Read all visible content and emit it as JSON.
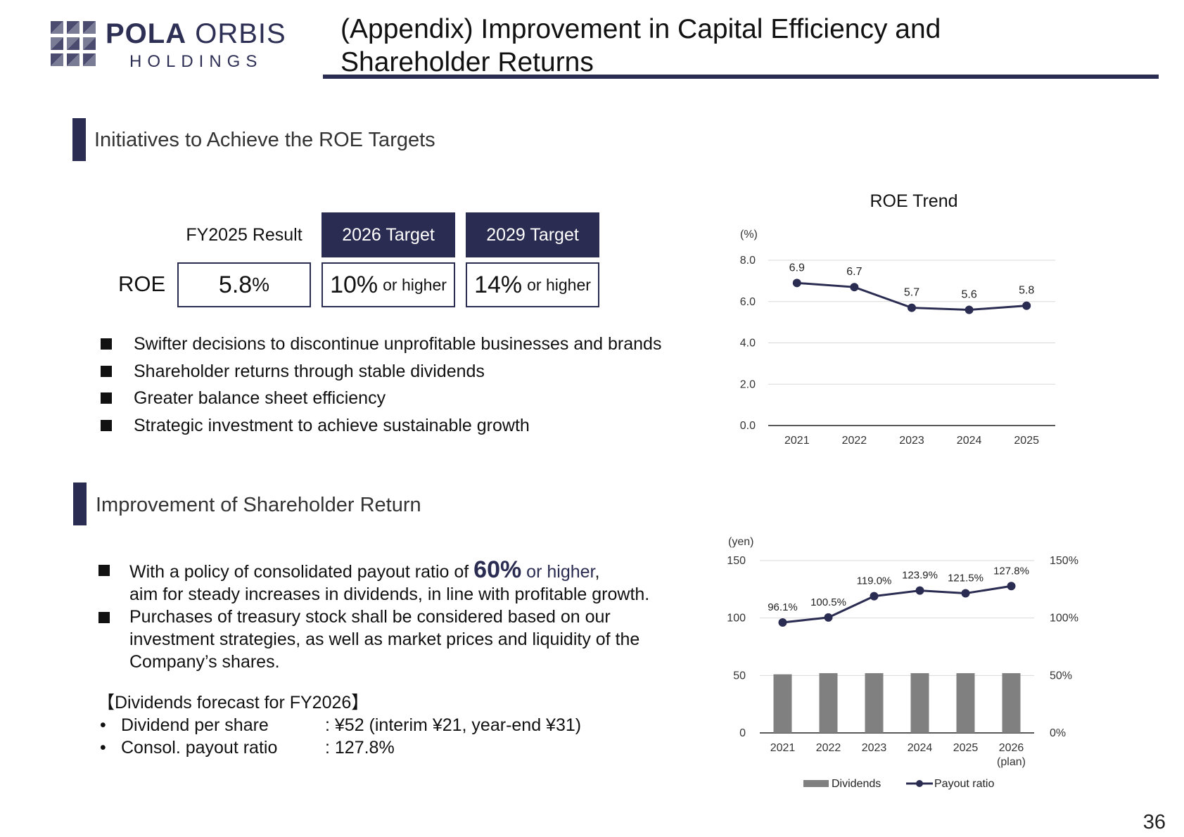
{
  "logo": {
    "brand_bold": "POLA",
    "brand_light": "ORBIS",
    "sub": "HOLDINGS"
  },
  "header": {
    "title_line1": "(Appendix) Improvement in Capital Efficiency and",
    "title_line2": "Shareholder Returns"
  },
  "section1": {
    "title": "Initiatives to Achieve the ROE Targets",
    "table": {
      "row_label": "ROE",
      "columns": [
        {
          "header": "FY2025 Result",
          "value": "5.8",
          "unit": "%",
          "suffix": ""
        },
        {
          "header": "2026 Target",
          "value": "10%",
          "unit": "",
          "suffix": "or higher"
        },
        {
          "header": "2029 Target",
          "value": "14%",
          "unit": "",
          "suffix": "or higher"
        }
      ]
    },
    "bullets": [
      "Swifter decisions to discontinue unprofitable businesses and brands",
      "Shareholder returns through stable dividends",
      "Greater balance sheet efficiency",
      "Strategic investment to achieve sustainable growth"
    ]
  },
  "section2": {
    "title": "Improvement of Shareholder Return",
    "bullet1_pre": "With a policy of consolidated payout ratio of ",
    "bullet1_highlight": "60%",
    "bullet1_hl_suffix": " or higher",
    "bullet1_post": ",",
    "bullet1_line2": "aim for steady increases in dividends, in line with profitable growth.",
    "bullet2_lines": [
      "Purchases of treasury stock shall be considered based on our",
      "investment strategies, as well as market prices and liquidity of the",
      "Company’s shares."
    ],
    "forecast": {
      "heading": "【Dividends forecast for FY2026】",
      "bullet_char": "•",
      "rows": [
        {
          "label": "Dividend per share",
          "value": ": ¥52 (interim ¥21, year-end ¥31)"
        },
        {
          "label": "Consol. payout ratio",
          "value": ": 127.8%"
        }
      ]
    }
  },
  "page_number": "36",
  "colors": {
    "navy": "#2b2c52",
    "bar_gray": "#808080",
    "grid": "#d9d9d9"
  },
  "chart_data": [
    {
      "type": "line",
      "title": "ROE Trend",
      "ylabel": "(%)",
      "categories": [
        "2021",
        "2022",
        "2023",
        "2024",
        "2025"
      ],
      "series": [
        {
          "values": [
            6.9,
            6.7,
            5.7,
            5.6,
            5.8
          ]
        }
      ],
      "ylim": [
        0,
        8
      ],
      "yticks": [
        "0.0",
        "2.0",
        "4.0",
        "6.0",
        "8.0"
      ],
      "data_labels": [
        "6.9",
        "6.7",
        "5.7",
        "5.6",
        "5.8"
      ],
      "grid": true
    },
    {
      "type": "bar",
      "ylabel_left": "(yen)",
      "categories": [
        "2021",
        "2022",
        "2023",
        "2024",
        "2025",
        "2026"
      ],
      "category_notes": [
        "",
        "",
        "",
        "",
        "",
        "(plan)"
      ],
      "series": [
        {
          "name": "Dividends",
          "type": "bar",
          "axis": "left",
          "values": [
            51,
            52,
            52,
            52,
            52,
            52
          ]
        },
        {
          "name": "Payout ratio",
          "type": "line",
          "axis": "right",
          "values": [
            96.1,
            100.5,
            119.0,
            123.9,
            121.5,
            127.8
          ]
        }
      ],
      "data_labels_line": [
        "96.1%",
        "100.5%",
        "119.0%",
        "123.9%",
        "121.5%",
        "127.8%"
      ],
      "left_ylim": [
        0,
        150
      ],
      "left_yticks": [
        "0",
        "50",
        "100",
        "150"
      ],
      "right_ylim": [
        0,
        150
      ],
      "right_yticks": [
        "0%",
        "50%",
        "100%",
        "150%"
      ],
      "legend": [
        "Dividends",
        "Payout ratio"
      ],
      "legend_position": "bottom",
      "grid": true
    }
  ]
}
